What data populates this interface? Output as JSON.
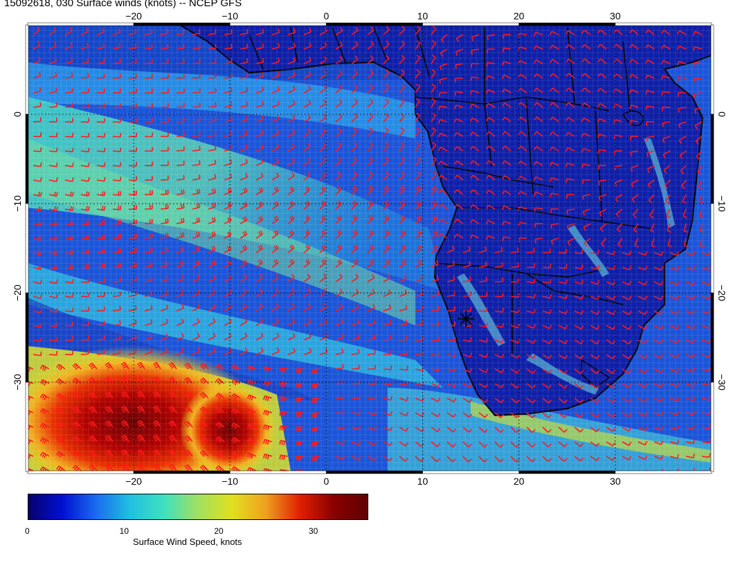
{
  "title": "15092618, 030 Surface winds (knots) -- NCEP GFS",
  "map": {
    "lon_ticks": [
      "−20",
      "−10",
      "0",
      "10",
      "20",
      "30"
    ],
    "lon_values": [
      -20,
      -10,
      0,
      10,
      20,
      30
    ],
    "lat_ticks": [
      "0",
      "−10",
      "−20",
      "−30"
    ],
    "lat_values": [
      0,
      -10,
      -20,
      -30
    ],
    "lon_range": [
      -31,
      40
    ],
    "lat_range": [
      -40,
      10
    ],
    "marker": {
      "name": "station-marker",
      "lon": 14.5,
      "lat": -22.9
    },
    "colors": {
      "ocean_low": "#0a1a9a",
      "barb": "#ff1a1a",
      "land_outline": "#000000"
    }
  },
  "colorbar": {
    "ticks": [
      "0",
      "10",
      "20",
      "30"
    ],
    "tick_values": [
      0,
      10,
      20,
      30
    ],
    "range": [
      0,
      36
    ],
    "label": "Surface Wind Speed, knots",
    "stops": [
      "#08006e",
      "#0010d0",
      "#1a6cf0",
      "#20c0e0",
      "#40e0c0",
      "#a0e060",
      "#e0e020",
      "#f0a020",
      "#e02000",
      "#8a0000",
      "#600000"
    ]
  }
}
